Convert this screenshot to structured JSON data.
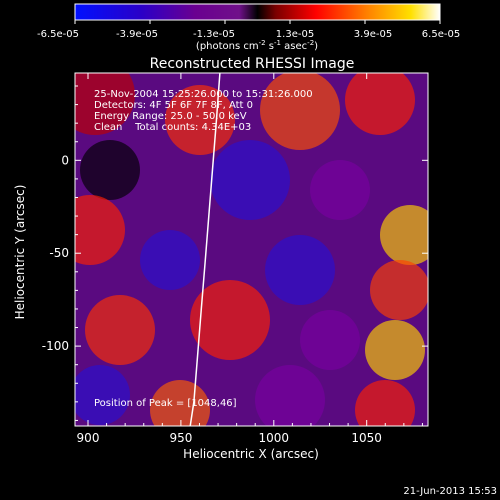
{
  "chart_data": {
    "type": "heatmap",
    "title": "Reconstructed RHESSI Image",
    "xlabel": "Heliocentric X (arcsec)",
    "ylabel": "Heliocentric Y (arcsec)",
    "xlim": [
      893,
      1083
    ],
    "ylim": [
      -143,
      47
    ],
    "x_ticks": [
      900,
      950,
      1000,
      1050
    ],
    "y_ticks": [
      0,
      -50,
      -100
    ],
    "colorbar": {
      "range": [
        -6.5e-05,
        6.5e-05
      ],
      "tick_labels": [
        "-6.5e-05",
        "-3.9e-05",
        "-1.3e-05",
        "1.3e-05",
        "3.9e-05",
        "6.5e-05"
      ],
      "unit_label": "(photons cm",
      "unit_exp1": "-2",
      "unit_mid": " s",
      "unit_exp2": "-1",
      "unit_end": " asec",
      "unit_exp3": "-2",
      "unit_close": ")"
    },
    "annotations": [
      "25-Nov-2004 15:25:26.000 to 15:31:26.000",
      "Detectors: 4F 5F 6F 7F 8F, Att 0",
      "Energy Range: 25.0 - 50.0 keV",
      "Clean    Total counts: 4.34E+03"
    ],
    "peak_label": "Position of Peak = [1048,46]",
    "peak": [
      1048,
      46
    ],
    "limb_curve": [
      [
        971,
        47
      ],
      [
        969,
        20
      ],
      [
        967,
        -5
      ],
      [
        965,
        -30
      ],
      [
        963,
        -55
      ],
      [
        961,
        -80
      ],
      [
        959,
        -105
      ],
      [
        957,
        -130
      ],
      [
        955,
        -143
      ]
    ]
  },
  "footer": {
    "date": "21-Jun-2013 15:53"
  },
  "colors": {
    "background": "#000000",
    "text": "#ffffff"
  }
}
